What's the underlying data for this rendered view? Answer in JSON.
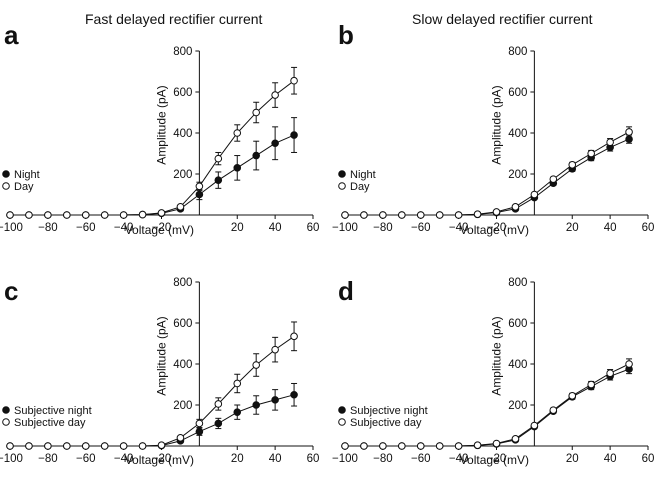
{
  "titles": {
    "a": "Fast delayed rectifier current",
    "b": "Slow delayed rectifier current"
  },
  "colors": {
    "line": "#111111",
    "open_fill": "#ffffff",
    "filled": "#111111"
  },
  "chart_data": [
    {
      "panel": "a",
      "type": "line",
      "title": "Fast delayed rectifier current",
      "xlabel": "Voltage (mV)",
      "ylabel": "Amplitude (pA)",
      "xlim": [
        -100,
        60
      ],
      "ylim": [
        0,
        800
      ],
      "xticks": [
        -100,
        -80,
        -60,
        -40,
        -20,
        20,
        40,
        60
      ],
      "yticks": [
        200,
        400,
        600,
        800
      ],
      "x": [
        -100,
        -90,
        -80,
        -70,
        -60,
        -50,
        -40,
        -30,
        -20,
        -10,
        0,
        10,
        20,
        30,
        40,
        50
      ],
      "legend_position": "left",
      "series": [
        {
          "name": "Night",
          "marker": "filled",
          "values": [
            0,
            0,
            0,
            0,
            0,
            0,
            0,
            2,
            8,
            30,
            100,
            170,
            230,
            290,
            350,
            390
          ],
          "errors": [
            0,
            0,
            0,
            0,
            0,
            0,
            0,
            2,
            4,
            10,
            25,
            40,
            60,
            70,
            80,
            85
          ]
        },
        {
          "name": "Day",
          "marker": "open",
          "values": [
            0,
            0,
            0,
            0,
            0,
            0,
            0,
            2,
            10,
            40,
            140,
            275,
            400,
            500,
            585,
            655
          ],
          "errors": [
            0,
            0,
            0,
            0,
            0,
            0,
            0,
            2,
            4,
            8,
            20,
            30,
            40,
            50,
            60,
            65
          ]
        }
      ]
    },
    {
      "panel": "b",
      "type": "line",
      "title": "Slow delayed rectifier current",
      "xlabel": "Voltage (mV)",
      "ylabel": "Amplitude (pA)",
      "xlim": [
        -100,
        60
      ],
      "ylim": [
        0,
        800
      ],
      "xticks": [
        -100,
        -80,
        -60,
        -40,
        -20,
        20,
        40,
        60
      ],
      "yticks": [
        200,
        400,
        600,
        800
      ],
      "x": [
        -100,
        -90,
        -80,
        -70,
        -60,
        -50,
        -40,
        -30,
        -20,
        -10,
        0,
        10,
        20,
        30,
        40,
        50
      ],
      "legend_position": "left",
      "series": [
        {
          "name": "Night",
          "marker": "filled",
          "values": [
            0,
            0,
            0,
            0,
            0,
            0,
            0,
            3,
            12,
            30,
            85,
            155,
            225,
            280,
            330,
            370
          ],
          "errors": [
            0,
            0,
            0,
            0,
            0,
            0,
            0,
            2,
            3,
            5,
            8,
            10,
            12,
            15,
            18,
            20
          ]
        },
        {
          "name": "Day",
          "marker": "open",
          "values": [
            0,
            0,
            0,
            0,
            0,
            0,
            0,
            4,
            15,
            40,
            100,
            175,
            245,
            300,
            355,
            405
          ],
          "errors": [
            0,
            0,
            0,
            0,
            0,
            0,
            0,
            2,
            3,
            5,
            8,
            10,
            12,
            15,
            18,
            25
          ]
        }
      ]
    },
    {
      "panel": "c",
      "type": "line",
      "title": "",
      "xlabel": "Voltage (mV)",
      "ylabel": "Amplitude (pA)",
      "xlim": [
        -100,
        60
      ],
      "ylim": [
        0,
        800
      ],
      "xticks": [
        -100,
        -80,
        -60,
        -40,
        -20,
        20,
        40,
        60
      ],
      "yticks": [
        200,
        400,
        600,
        800
      ],
      "x": [
        -100,
        -90,
        -80,
        -70,
        -60,
        -50,
        -40,
        -30,
        -20,
        -10,
        0,
        10,
        20,
        30,
        40,
        50
      ],
      "legend_position": "left",
      "series": [
        {
          "name": "Subjective night",
          "marker": "filled",
          "values": [
            0,
            0,
            0,
            0,
            0,
            0,
            0,
            0,
            2,
            25,
            70,
            110,
            165,
            200,
            225,
            250
          ],
          "errors": [
            0,
            0,
            0,
            0,
            0,
            0,
            0,
            0,
            2,
            8,
            18,
            25,
            35,
            45,
            50,
            55
          ]
        },
        {
          "name": "Subjective day",
          "marker": "open",
          "values": [
            0,
            0,
            0,
            0,
            0,
            0,
            0,
            0,
            4,
            40,
            110,
            205,
            305,
            395,
            470,
            535
          ],
          "errors": [
            0,
            0,
            0,
            0,
            0,
            0,
            0,
            0,
            2,
            8,
            20,
            30,
            45,
            55,
            60,
            70
          ]
        }
      ]
    },
    {
      "panel": "d",
      "type": "line",
      "title": "",
      "xlabel": "Voltage (mV)",
      "ylabel": "Amplitude (pA)",
      "xlim": [
        -100,
        60
      ],
      "ylim": [
        0,
        800
      ],
      "xticks": [
        -100,
        -80,
        -60,
        -40,
        -20,
        20,
        40,
        60
      ],
      "yticks": [
        200,
        400,
        600,
        800
      ],
      "x": [
        -100,
        -90,
        -80,
        -70,
        -60,
        -50,
        -40,
        -30,
        -20,
        -10,
        0,
        10,
        20,
        30,
        40,
        50
      ],
      "legend_position": "left",
      "series": [
        {
          "name": "Subjective night",
          "marker": "filled",
          "values": [
            0,
            0,
            0,
            0,
            0,
            0,
            0,
            3,
            10,
            30,
            95,
            170,
            240,
            290,
            340,
            375
          ],
          "errors": [
            0,
            0,
            0,
            0,
            0,
            0,
            0,
            2,
            3,
            5,
            8,
            10,
            12,
            15,
            18,
            22
          ]
        },
        {
          "name": "Subjective day",
          "marker": "open",
          "values": [
            0,
            0,
            0,
            0,
            0,
            0,
            0,
            4,
            12,
            35,
            100,
            175,
            245,
            300,
            355,
            400
          ],
          "errors": [
            0,
            0,
            0,
            0,
            0,
            0,
            0,
            2,
            3,
            5,
            8,
            10,
            12,
            15,
            18,
            25
          ]
        }
      ]
    }
  ]
}
